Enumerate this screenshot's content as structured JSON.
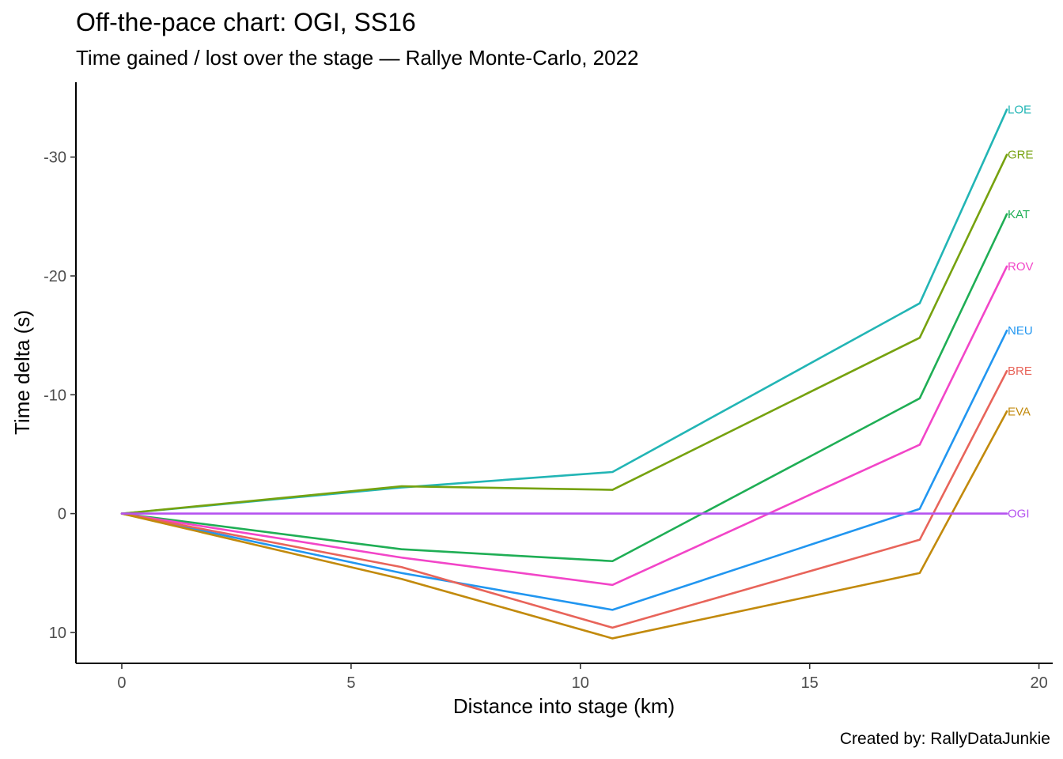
{
  "chart_data": {
    "type": "line",
    "title": "Off-the-pace chart: OGI, SS16",
    "subtitle": "Time gained / lost over the stage — Rallye Monte-Carlo, 2022",
    "xlabel": "Distance into stage (km)",
    "ylabel": "Time delta (s)",
    "caption": "Created by: RallyDataJunkie",
    "xlim": [
      -1,
      20.3
    ],
    "ylim": [
      12.6,
      -36.3
    ],
    "y_reversed": true,
    "grid": false,
    "legend": "direct labels at line ends",
    "xticks": [
      0,
      5,
      10,
      15,
      20
    ],
    "xtick_labels": [
      "0",
      "5",
      "10",
      "15",
      "20"
    ],
    "yticks": [
      -30,
      -20,
      -10,
      0,
      10
    ],
    "ytick_labels": [
      "-30",
      "-20",
      "-10",
      "0",
      "10"
    ],
    "x": [
      0,
      6.1,
      10.7,
      17.4,
      19.3
    ],
    "series": [
      {
        "name": "LOE",
        "color": "#22b5b5",
        "values": [
          0,
          -2.2,
          -3.5,
          -17.7,
          -34.0
        ]
      },
      {
        "name": "GRE",
        "color": "#76a20f",
        "values": [
          0,
          -2.3,
          -2.0,
          -14.8,
          -30.2
        ]
      },
      {
        "name": "KAT",
        "color": "#1fae55",
        "values": [
          0,
          3.0,
          4.0,
          -9.7,
          -25.2
        ]
      },
      {
        "name": "ROV",
        "color": "#f245c8",
        "values": [
          0,
          3.7,
          6.0,
          -5.8,
          -20.8
        ]
      },
      {
        "name": "NEU",
        "color": "#2196f0",
        "values": [
          0,
          5.0,
          8.1,
          -0.4,
          -15.4
        ]
      },
      {
        "name": "BRE",
        "color": "#e8645a",
        "values": [
          0,
          4.5,
          9.6,
          2.2,
          -12.0
        ]
      },
      {
        "name": "EVA",
        "color": "#c28a0c",
        "values": [
          0,
          5.5,
          10.5,
          5.0,
          -8.6
        ]
      },
      {
        "name": "OGI",
        "color": "#b553f0",
        "values": [
          0,
          0,
          0,
          0,
          0
        ]
      }
    ]
  }
}
